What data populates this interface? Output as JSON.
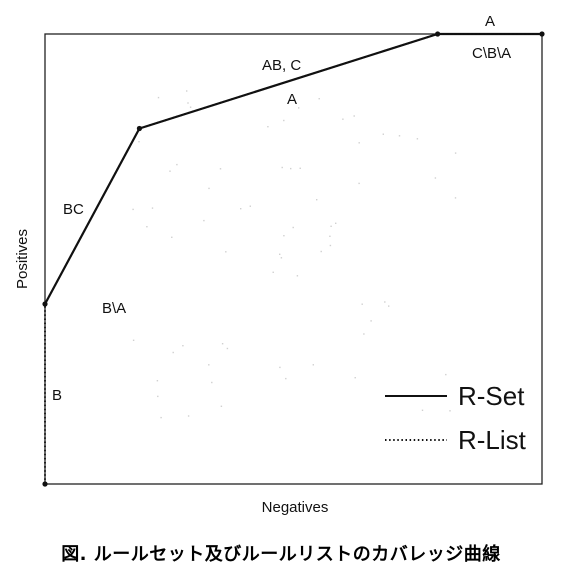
{
  "chart_data": {
    "type": "line",
    "title": "",
    "xlabel": "Negatives",
    "ylabel": "Positives",
    "xlim": [
      0,
      1
    ],
    "ylim": [
      0,
      1
    ],
    "grid": false,
    "legend_position": "bottom-right",
    "series": [
      {
        "name": "R-Set",
        "style": "solid",
        "x": [
          0,
          0.19,
          0.79,
          1.0
        ],
        "y": [
          0.4,
          0.79,
          1.0,
          1.0
        ],
        "segment_labels": [
          "BC",
          "AB, C",
          "A"
        ]
      },
      {
        "name": "R-List",
        "style": "dotted",
        "x": [
          0,
          0,
          0.19,
          0.79,
          1.0
        ],
        "y": [
          0,
          0.4,
          0.79,
          1.0,
          1.0
        ],
        "segment_labels": [
          "B",
          "B\\A",
          "A",
          "C\\B\\A"
        ]
      }
    ]
  },
  "caption": "図. ルールセット及びルールリストのカバレッジ曲線"
}
